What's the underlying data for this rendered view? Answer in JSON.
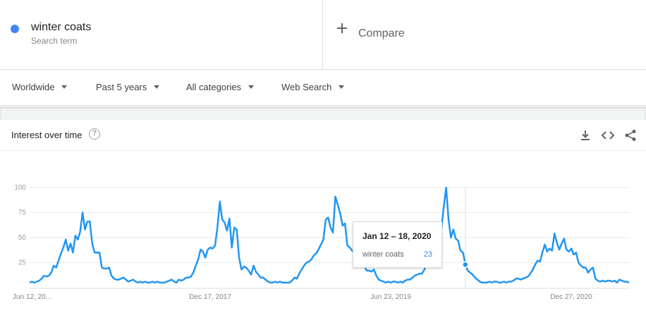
{
  "term": {
    "name": "winter coats",
    "subtitle": "Search term",
    "color": "#4285f4"
  },
  "compare": {
    "label": "Compare"
  },
  "filters": {
    "region": "Worldwide",
    "period": "Past 5 years",
    "category": "All categories",
    "search_type": "Web Search"
  },
  "card": {
    "title": "Interest over time",
    "help_icon": "help-icon",
    "actions": [
      "download-icon",
      "embed-code-icon",
      "share-icon"
    ]
  },
  "tooltip": {
    "date": "Jan 12 – 18, 2020",
    "term": "winter coats",
    "value": "23"
  },
  "chart_data": {
    "type": "line",
    "ylim": [
      0,
      100
    ],
    "y_ticks": [
      25,
      50,
      75,
      100
    ],
    "x_tick_labels": [
      "Jun 12, 20...",
      "Dec 17, 2017",
      "Jun 23, 2019",
      "Dec 27, 2020"
    ],
    "grid": true,
    "line_color": "#2196f3",
    "series": [
      {
        "values": [
          5,
          6,
          5,
          6,
          7,
          9,
          12,
          11,
          12,
          15,
          22,
          20,
          27,
          34,
          40,
          48,
          37,
          44,
          35,
          52,
          48,
          56,
          75,
          58,
          66,
          66,
          44,
          35,
          35,
          35,
          20,
          19,
          19,
          20,
          12,
          9,
          8,
          8,
          9,
          10,
          8,
          6,
          7,
          8,
          6,
          5,
          6,
          5,
          6,
          5,
          5,
          6,
          5,
          6,
          5,
          5,
          5,
          6,
          7,
          8,
          6,
          5,
          8,
          7,
          8,
          10,
          10,
          11,
          15,
          22,
          28,
          38,
          36,
          30,
          38,
          40,
          39,
          42,
          60,
          86,
          68,
          65,
          57,
          69,
          40,
          60,
          58,
          30,
          18,
          21,
          20,
          17,
          13,
          22,
          16,
          13,
          10,
          10,
          8,
          6,
          5,
          5,
          6,
          5,
          6,
          5,
          5,
          5,
          5,
          7,
          10,
          9,
          14,
          18,
          22,
          25,
          26,
          28,
          32,
          34,
          38,
          43,
          48,
          68,
          70,
          60,
          55,
          91,
          83,
          74,
          62,
          64,
          42,
          40,
          37,
          34,
          33,
          38,
          35,
          22,
          17,
          17,
          16,
          18,
          12,
          8,
          7,
          6,
          5,
          6,
          5,
          6,
          6,
          5,
          6,
          5,
          7,
          8,
          8,
          10,
          12,
          13,
          14,
          14,
          18,
          25,
          30,
          37,
          50,
          48,
          54,
          58,
          80,
          100,
          68,
          50,
          58,
          49,
          47,
          37,
          35,
          23,
          17,
          15,
          13,
          10,
          8,
          6,
          5,
          5,
          5,
          6,
          5,
          6,
          6,
          5,
          5,
          6,
          5,
          6,
          6,
          7,
          9,
          9,
          8,
          9,
          10,
          11,
          14,
          18,
          23,
          27,
          26,
          35,
          43,
          36,
          39,
          37,
          54,
          45,
          38,
          44,
          49,
          38,
          36,
          39,
          33,
          35,
          25,
          22,
          20,
          20,
          15,
          18,
          20,
          9,
          7,
          6,
          7,
          6,
          7,
          7,
          6,
          7,
          5,
          8,
          7,
          6,
          6,
          5
        ]
      }
    ]
  }
}
